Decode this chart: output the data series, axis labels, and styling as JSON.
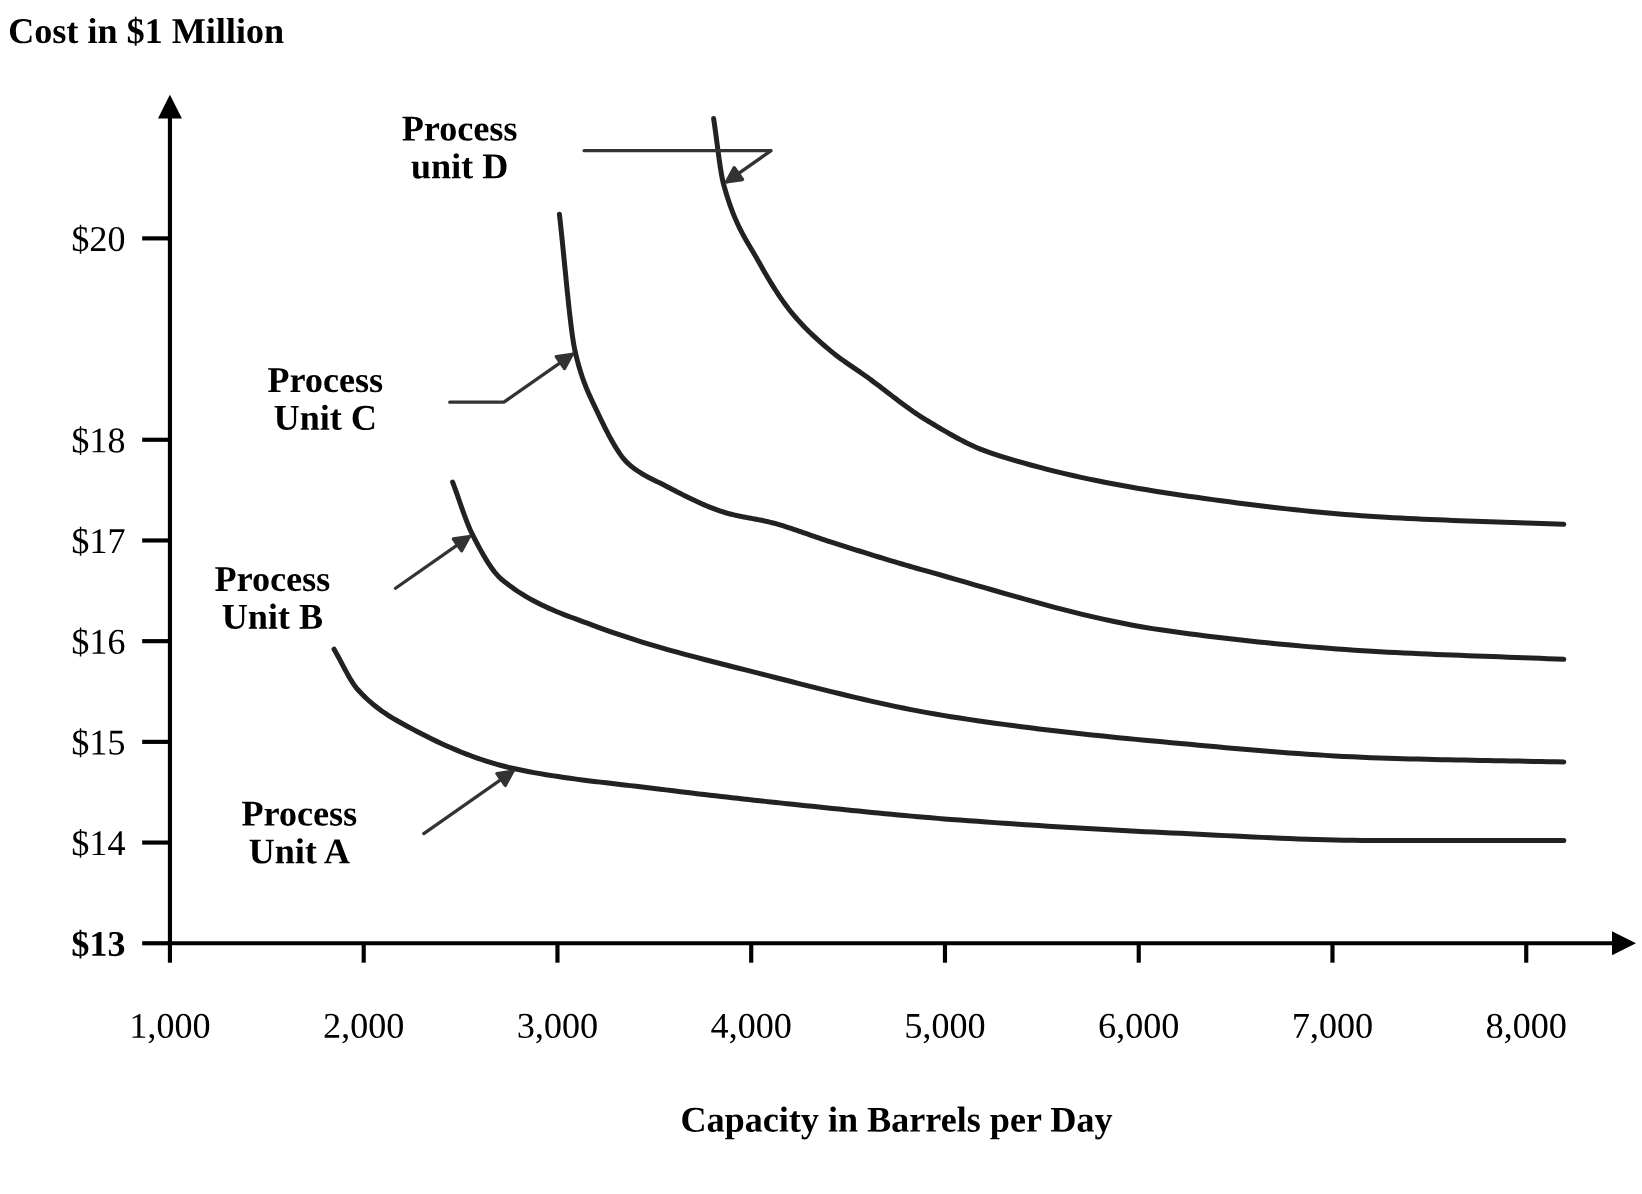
{
  "chart_data": {
    "type": "line",
    "xlabel": "Capacity in Barrels per Day",
    "ylabel": "Cost in $1 Million",
    "xlim": [
      1000,
      8500
    ],
    "ylim": [
      13,
      21.3
    ],
    "xticks": [
      {
        "value": 1000,
        "label": "1,000"
      },
      {
        "value": 2000,
        "label": "2,000"
      },
      {
        "value": 3000,
        "label": "3,000"
      },
      {
        "value": 4000,
        "label": "4,000"
      },
      {
        "value": 5000,
        "label": "5,000"
      },
      {
        "value": 6000,
        "label": "6,000"
      },
      {
        "value": 7000,
        "label": "7,000"
      },
      {
        "value": 8000,
        "label": "8,000"
      }
    ],
    "yticks": [
      {
        "value": 13,
        "label": "$13"
      },
      {
        "value": 14,
        "label": "$14"
      },
      {
        "value": 15,
        "label": "$15"
      },
      {
        "value": 16,
        "label": "$16"
      },
      {
        "value": 17,
        "label": "$17"
      },
      {
        "value": 18,
        "label": "$18"
      },
      {
        "value": 20,
        "label": "$20"
      }
    ],
    "grid": false,
    "legend": false,
    "marker": "none",
    "line_style": "solid",
    "series": [
      {
        "color": "#222222",
        "x": [
          1847,
          1969,
          2173,
          2786,
          3531,
          4214,
          5031,
          6122,
          7245,
          8194
        ],
        "values": [
          15.92,
          15.52,
          15.21,
          14.73,
          14.53,
          14.38,
          14.23,
          14.1,
          14.02,
          14.02
        ]
      },
      {
        "color": "#222222",
        "x": [
          2459,
          2561,
          2714,
          3194,
          4041,
          5031,
          6122,
          7245,
          8194
        ],
        "values": [
          17.58,
          17.06,
          16.61,
          16.15,
          15.68,
          15.25,
          15.0,
          14.84,
          14.8
        ]
      },
      {
        "color": "#222222",
        "x": [
          3010,
          3092,
          3200,
          3367,
          3550,
          3878,
          4100,
          4418,
          4898,
          6122,
          7204,
          8194
        ],
        "values": [
          20.24,
          18.87,
          18.3,
          17.76,
          17.55,
          17.27,
          17.18,
          16.98,
          16.7,
          16.11,
          15.9,
          15.82
        ]
      },
      {
        "color": "#222222",
        "x": [
          3806,
          3857,
          4041,
          4214,
          4418,
          4600,
          4900,
          5235,
          6255,
          7276,
          8194
        ],
        "values": [
          21.19,
          20.54,
          19.76,
          19.25,
          18.87,
          18.62,
          18.2,
          17.87,
          17.44,
          17.23,
          17.16
        ]
      }
    ],
    "annotations": [
      "Process\nUnit A",
      "Process\nUnit B",
      "Process\nUnit C",
      "Process\nunit D"
    ]
  }
}
